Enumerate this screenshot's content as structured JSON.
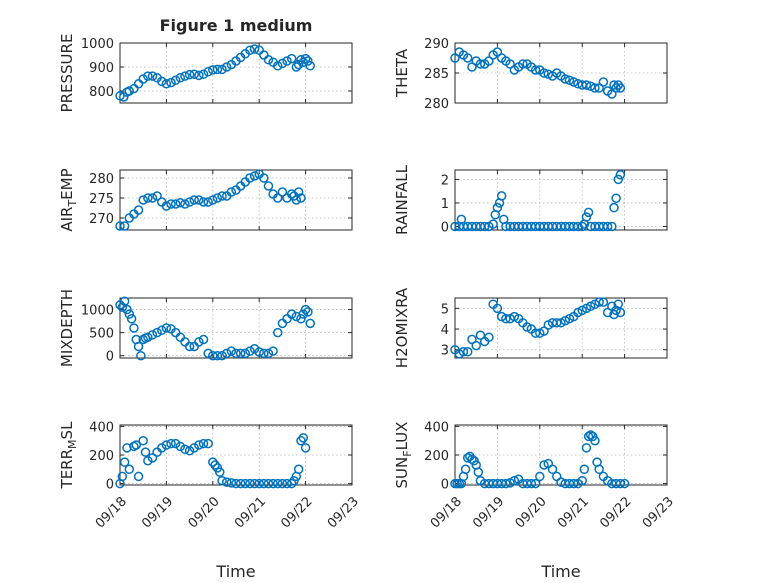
{
  "chart_data": [
    {
      "id": "p1",
      "type": "scatter",
      "title": "Figure 1 medium",
      "ylabel": "PRESSURE",
      "xlabel": "",
      "ylim": [
        750,
        1000
      ],
      "yticks": [
        800,
        900,
        1000
      ],
      "xlim": [
        0,
        5
      ],
      "show_xticklabels": false,
      "series": [
        {
          "name": "PRESSURE",
          "color": "#0072BD",
          "x": [
            0.0,
            0.08,
            0.15,
            0.2,
            0.3,
            0.4,
            0.5,
            0.6,
            0.7,
            0.8,
            0.9,
            1.0,
            1.1,
            1.2,
            1.3,
            1.4,
            1.5,
            1.6,
            1.7,
            1.8,
            1.9,
            2.0,
            2.1,
            2.2,
            2.3,
            2.4,
            2.5,
            2.6,
            2.7,
            2.8,
            2.9,
            3.0,
            3.1,
            3.2,
            3.3,
            3.4,
            3.5,
            3.6,
            3.7,
            3.8,
            3.85,
            3.9,
            3.95,
            4.0,
            4.05,
            4.1
          ],
          "y": [
            780,
            775,
            795,
            800,
            810,
            830,
            850,
            862,
            862,
            855,
            840,
            830,
            835,
            845,
            855,
            862,
            868,
            870,
            865,
            870,
            880,
            888,
            890,
            890,
            900,
            910,
            925,
            940,
            955,
            970,
            975,
            970,
            950,
            930,
            920,
            905,
            915,
            925,
            935,
            900,
            910,
            930,
            920,
            935,
            925,
            905
          ]
        }
      ]
    },
    {
      "id": "p2",
      "type": "scatter",
      "title": "",
      "ylabel": "THETA",
      "xlabel": "",
      "ylim": [
        280,
        290
      ],
      "yticks": [
        280,
        285,
        290
      ],
      "xlim": [
        0,
        5
      ],
      "show_xticklabels": false,
      "series": [
        {
          "name": "THETA",
          "color": "#0072BD",
          "x": [
            0.0,
            0.1,
            0.2,
            0.3,
            0.4,
            0.5,
            0.6,
            0.7,
            0.8,
            0.9,
            1.0,
            1.1,
            1.2,
            1.3,
            1.4,
            1.5,
            1.6,
            1.7,
            1.8,
            1.9,
            2.0,
            2.1,
            2.2,
            2.3,
            2.4,
            2.5,
            2.6,
            2.7,
            2.8,
            2.9,
            3.0,
            3.1,
            3.2,
            3.3,
            3.4,
            3.5,
            3.6,
            3.7,
            3.75,
            3.8,
            3.85,
            3.9
          ],
          "y": [
            287.5,
            288.5,
            288,
            287.5,
            286,
            287,
            286.5,
            286.5,
            287,
            288,
            288.5,
            287.5,
            287,
            286.5,
            285.5,
            286,
            286.5,
            286.5,
            286,
            285.5,
            285.5,
            285,
            284.8,
            284.5,
            285,
            284.5,
            284,
            283.8,
            283.5,
            283.2,
            283,
            283,
            282.8,
            282.5,
            282.5,
            283.5,
            282,
            281.5,
            283,
            282.5,
            283,
            282.5
          ]
        }
      ]
    },
    {
      "id": "p3",
      "type": "scatter",
      "title": "",
      "ylabel": "AIR_TEMP",
      "xlabel": "",
      "ylim": [
        267,
        282
      ],
      "yticks": [
        270,
        275,
        280
      ],
      "xlim": [
        0,
        5
      ],
      "show_xticklabels": false,
      "series": [
        {
          "name": "AIR_TEMP",
          "color": "#0072BD",
          "x": [
            0.0,
            0.1,
            0.2,
            0.3,
            0.4,
            0.5,
            0.6,
            0.7,
            0.8,
            0.9,
            1.0,
            1.1,
            1.2,
            1.3,
            1.4,
            1.5,
            1.6,
            1.7,
            1.8,
            1.9,
            2.0,
            2.1,
            2.2,
            2.3,
            2.4,
            2.5,
            2.6,
            2.7,
            2.8,
            2.9,
            3.0,
            3.1,
            3.2,
            3.3,
            3.4,
            3.5,
            3.6,
            3.7,
            3.75,
            3.8,
            3.85,
            3.9
          ],
          "y": [
            268,
            268,
            270,
            271,
            272,
            274.5,
            275,
            275,
            275.5,
            274,
            273,
            273.5,
            273.5,
            273.8,
            273.5,
            274,
            274.5,
            274.5,
            274,
            274,
            274.5,
            275,
            275.5,
            275.5,
            276.5,
            277,
            278,
            279,
            280,
            280.5,
            281,
            280,
            278,
            276,
            275,
            276.5,
            275,
            276,
            275.5,
            274.5,
            276.5,
            275
          ]
        }
      ]
    },
    {
      "id": "p4",
      "type": "scatter",
      "title": "",
      "ylabel": "RAINFALL",
      "xlabel": "",
      "ylim": [
        -0.15,
        2.4
      ],
      "yticks": [
        0,
        1,
        2
      ],
      "xlim": [
        0,
        5
      ],
      "show_xticklabels": false,
      "series": [
        {
          "name": "RAINFALL",
          "color": "#0072BD",
          "x": [
            0.0,
            0.1,
            0.15,
            0.2,
            0.3,
            0.4,
            0.5,
            0.6,
            0.7,
            0.8,
            0.9,
            0.95,
            1.0,
            1.05,
            1.1,
            1.15,
            1.2,
            1.3,
            1.4,
            1.5,
            1.6,
            1.7,
            1.8,
            1.9,
            2.0,
            2.1,
            2.2,
            2.3,
            2.4,
            2.5,
            2.6,
            2.7,
            2.8,
            2.9,
            3.0,
            3.05,
            3.1,
            3.15,
            3.2,
            3.3,
            3.4,
            3.5,
            3.6,
            3.7,
            3.75,
            3.8,
            3.85,
            3.9
          ],
          "y": [
            0,
            0,
            0.3,
            0,
            0,
            0,
            0,
            0,
            0,
            0,
            0.1,
            0.5,
            0.8,
            1.0,
            1.3,
            0.3,
            0,
            0,
            0,
            0,
            0,
            0,
            0,
            0,
            0,
            0,
            0,
            0,
            0,
            0,
            0,
            0,
            0,
            0,
            0,
            0.1,
            0.4,
            0.6,
            0,
            0,
            0,
            0,
            0,
            0,
            0.8,
            1.2,
            2.0,
            2.2
          ]
        }
      ]
    },
    {
      "id": "p5",
      "type": "scatter",
      "title": "",
      "ylabel": "MIXDEPTH",
      "xlabel": "",
      "ylim": [
        -50,
        1250
      ],
      "yticks": [
        0,
        500,
        1000
      ],
      "xlim": [
        0,
        5
      ],
      "show_xticklabels": false,
      "series": [
        {
          "name": "MIXDEPTH",
          "color": "#0072BD",
          "x": [
            0.0,
            0.05,
            0.1,
            0.15,
            0.2,
            0.25,
            0.3,
            0.35,
            0.4,
            0.45,
            0.5,
            0.55,
            0.6,
            0.7,
            0.8,
            0.9,
            1.0,
            1.1,
            1.2,
            1.3,
            1.4,
            1.5,
            1.6,
            1.7,
            1.8,
            1.9,
            2.0,
            2.1,
            2.2,
            2.3,
            2.4,
            2.5,
            2.6,
            2.7,
            2.8,
            2.9,
            3.0,
            3.1,
            3.2,
            3.3,
            3.4,
            3.5,
            3.6,
            3.7,
            3.8,
            3.9,
            3.95,
            4.0,
            4.05,
            4.1
          ],
          "y": [
            1100,
            1050,
            1180,
            1000,
            900,
            800,
            600,
            350,
            200,
            0,
            350,
            380,
            400,
            450,
            500,
            550,
            600,
            580,
            500,
            400,
            300,
            200,
            200,
            300,
            350,
            50,
            0,
            0,
            0,
            50,
            100,
            50,
            50,
            50,
            100,
            150,
            80,
            50,
            50,
            100,
            500,
            700,
            800,
            900,
            850,
            800,
            900,
            1000,
            950,
            700
          ]
        }
      ]
    },
    {
      "id": "p6",
      "type": "scatter",
      "title": "",
      "ylabel": "H2OMIXRA",
      "xlabel": "",
      "ylim": [
        2.6,
        5.5
      ],
      "yticks": [
        3,
        4,
        5
      ],
      "xlim": [
        0,
        5
      ],
      "show_xticklabels": false,
      "series": [
        {
          "name": "H2OMIXRA",
          "color": "#0072BD",
          "x": [
            0.0,
            0.1,
            0.2,
            0.3,
            0.4,
            0.5,
            0.6,
            0.7,
            0.8,
            0.9,
            1.0,
            1.1,
            1.2,
            1.3,
            1.4,
            1.5,
            1.6,
            1.7,
            1.8,
            1.9,
            2.0,
            2.1,
            2.2,
            2.3,
            2.4,
            2.5,
            2.6,
            2.7,
            2.8,
            2.9,
            3.0,
            3.1,
            3.2,
            3.3,
            3.4,
            3.5,
            3.6,
            3.7,
            3.75,
            3.8,
            3.85,
            3.9
          ],
          "y": [
            3.0,
            2.8,
            2.9,
            2.9,
            3.5,
            3.2,
            3.7,
            3.4,
            3.6,
            5.2,
            5.0,
            4.6,
            4.5,
            4.5,
            4.6,
            4.5,
            4.3,
            4.1,
            4.0,
            3.8,
            3.8,
            3.9,
            4.2,
            4.3,
            4.3,
            4.3,
            4.4,
            4.5,
            4.6,
            4.8,
            4.9,
            5.0,
            5.1,
            5.2,
            5.3,
            5.3,
            4.8,
            5.1,
            4.7,
            4.9,
            5.2,
            4.8
          ]
        }
      ]
    },
    {
      "id": "p7",
      "type": "scatter",
      "title": "",
      "ylabel": "TERR_MSL",
      "xlabel": "Time",
      "ylim": [
        -10,
        410
      ],
      "yticks": [
        0,
        200,
        400
      ],
      "xlim": [
        0,
        5
      ],
      "show_xticklabels": true,
      "series": [
        {
          "name": "TERR_MSL",
          "color": "#0072BD",
          "x": [
            0.0,
            0.05,
            0.1,
            0.15,
            0.2,
            0.3,
            0.35,
            0.4,
            0.5,
            0.55,
            0.6,
            0.7,
            0.8,
            0.9,
            1.0,
            1.1,
            1.2,
            1.3,
            1.4,
            1.5,
            1.6,
            1.7,
            1.8,
            1.9,
            2.0,
            2.05,
            2.1,
            2.15,
            2.2,
            2.3,
            2.4,
            2.5,
            2.6,
            2.7,
            2.8,
            2.9,
            3.0,
            3.1,
            3.2,
            3.3,
            3.4,
            3.5,
            3.6,
            3.7,
            3.75,
            3.8,
            3.85,
            3.9,
            3.95,
            4.0
          ],
          "y": [
            0,
            50,
            150,
            250,
            100,
            260,
            270,
            50,
            300,
            220,
            160,
            180,
            220,
            250,
            270,
            280,
            280,
            260,
            240,
            230,
            250,
            270,
            280,
            280,
            150,
            130,
            110,
            80,
            20,
            10,
            5,
            0,
            0,
            0,
            0,
            0,
            0,
            0,
            0,
            0,
            0,
            0,
            0,
            0,
            20,
            50,
            100,
            300,
            320,
            250
          ]
        }
      ]
    },
    {
      "id": "p8",
      "type": "scatter",
      "title": "",
      "ylabel": "SUN_FLUX",
      "xlabel": "Time",
      "ylim": [
        -10,
        410
      ],
      "yticks": [
        0,
        200,
        400
      ],
      "xlim": [
        0,
        5
      ],
      "show_xticklabels": true,
      "series": [
        {
          "name": "SUN_FLUX",
          "color": "#0072BD",
          "x": [
            0.0,
            0.05,
            0.1,
            0.15,
            0.2,
            0.25,
            0.3,
            0.35,
            0.4,
            0.45,
            0.5,
            0.55,
            0.6,
            0.7,
            0.8,
            0.9,
            1.0,
            1.1,
            1.2,
            1.3,
            1.4,
            1.5,
            1.6,
            1.7,
            1.8,
            1.9,
            2.0,
            2.1,
            2.2,
            2.3,
            2.4,
            2.5,
            2.6,
            2.7,
            2.8,
            2.9,
            3.0,
            3.05,
            3.1,
            3.15,
            3.2,
            3.25,
            3.3,
            3.35,
            3.4,
            3.5,
            3.6,
            3.7,
            3.8,
            3.9,
            4.0
          ],
          "y": [
            0,
            0,
            0,
            0,
            50,
            100,
            180,
            190,
            170,
            160,
            130,
            80,
            20,
            0,
            0,
            0,
            0,
            0,
            0,
            5,
            20,
            30,
            0,
            0,
            0,
            0,
            50,
            130,
            140,
            100,
            50,
            10,
            0,
            0,
            0,
            0,
            20,
            100,
            250,
            330,
            340,
            330,
            300,
            150,
            100,
            50,
            20,
            0,
            0,
            0,
            0
          ]
        }
      ]
    }
  ],
  "x_axis": {
    "tick_labels": [
      "09/18",
      "09/19",
      "09/20",
      "09/21",
      "09/22",
      "09/23"
    ],
    "label": "Time"
  }
}
